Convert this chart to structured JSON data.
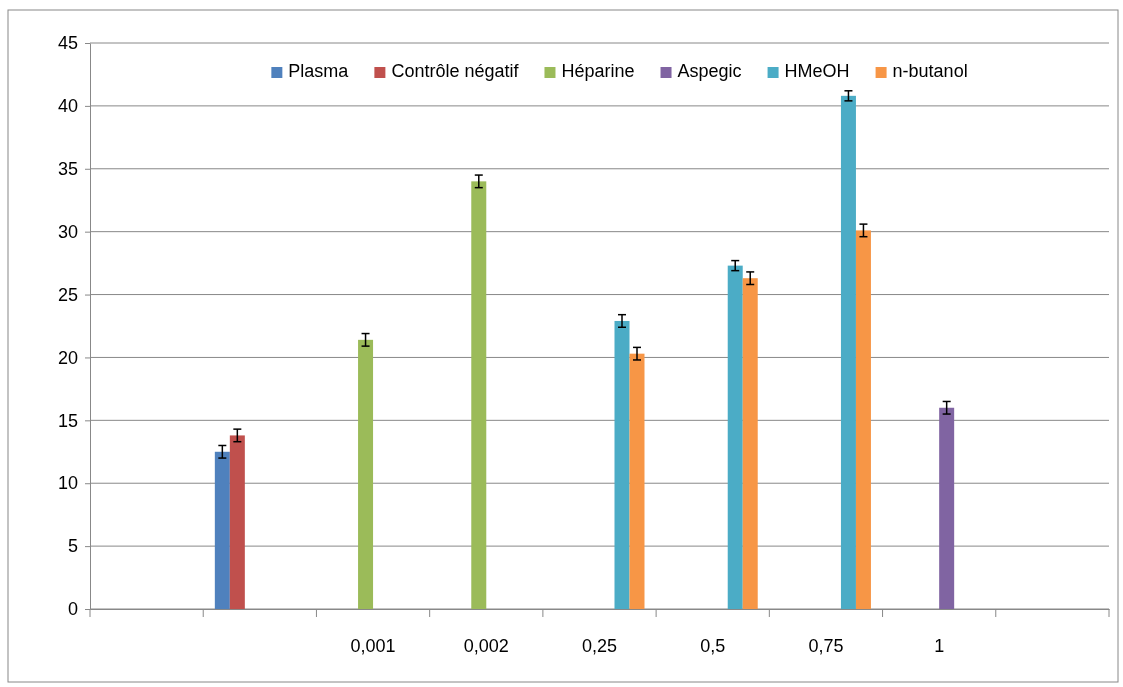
{
  "chart_data": {
    "type": "bar",
    "categories": [
      null,
      null,
      "0,001",
      "0,002",
      "0,25",
      "0,5",
      "0,75",
      "1",
      null
    ],
    "series": [
      {
        "name": "Plasma",
        "color": "#4f81bd",
        "values": [
          null,
          12.5,
          null,
          null,
          null,
          null,
          null,
          null,
          null
        ],
        "errors": [
          null,
          0.5,
          null,
          null,
          null,
          null,
          null,
          null,
          null
        ]
      },
      {
        "name": "Contrôle négatif",
        "color": "#c0504d",
        "values": [
          null,
          13.8,
          null,
          null,
          null,
          null,
          null,
          null,
          null
        ],
        "errors": [
          null,
          0.5,
          null,
          null,
          null,
          null,
          null,
          null,
          null
        ]
      },
      {
        "name": "Héparine",
        "color": "#9bbb59",
        "values": [
          null,
          null,
          21.4,
          34,
          null,
          null,
          null,
          null,
          null
        ],
        "errors": [
          null,
          null,
          0.5,
          0.5,
          null,
          null,
          null,
          null,
          null
        ]
      },
      {
        "name": "Aspegic",
        "color": "#8064a2",
        "values": [
          null,
          null,
          null,
          null,
          null,
          null,
          null,
          16,
          null
        ],
        "errors": [
          null,
          null,
          null,
          null,
          null,
          null,
          null,
          0.5,
          null
        ]
      },
      {
        "name": "HMeOH",
        "color": "#4bacc6",
        "values": [
          null,
          null,
          null,
          null,
          22.9,
          27.3,
          40.8,
          null,
          null
        ],
        "errors": [
          null,
          null,
          null,
          null,
          0.5,
          0.4,
          0.4,
          null,
          null
        ]
      },
      {
        "name": "n-butanol",
        "color": "#f79646",
        "values": [
          null,
          null,
          null,
          null,
          20.3,
          26.3,
          30.1,
          null,
          null
        ],
        "errors": [
          null,
          null,
          null,
          null,
          0.5,
          0.5,
          0.5,
          null,
          null
        ]
      }
    ],
    "ylim": [
      0,
      45
    ],
    "yticks": [
      0,
      5,
      10,
      15,
      20,
      25,
      30,
      35,
      40,
      45
    ],
    "grid": "y",
    "legend": "top"
  }
}
